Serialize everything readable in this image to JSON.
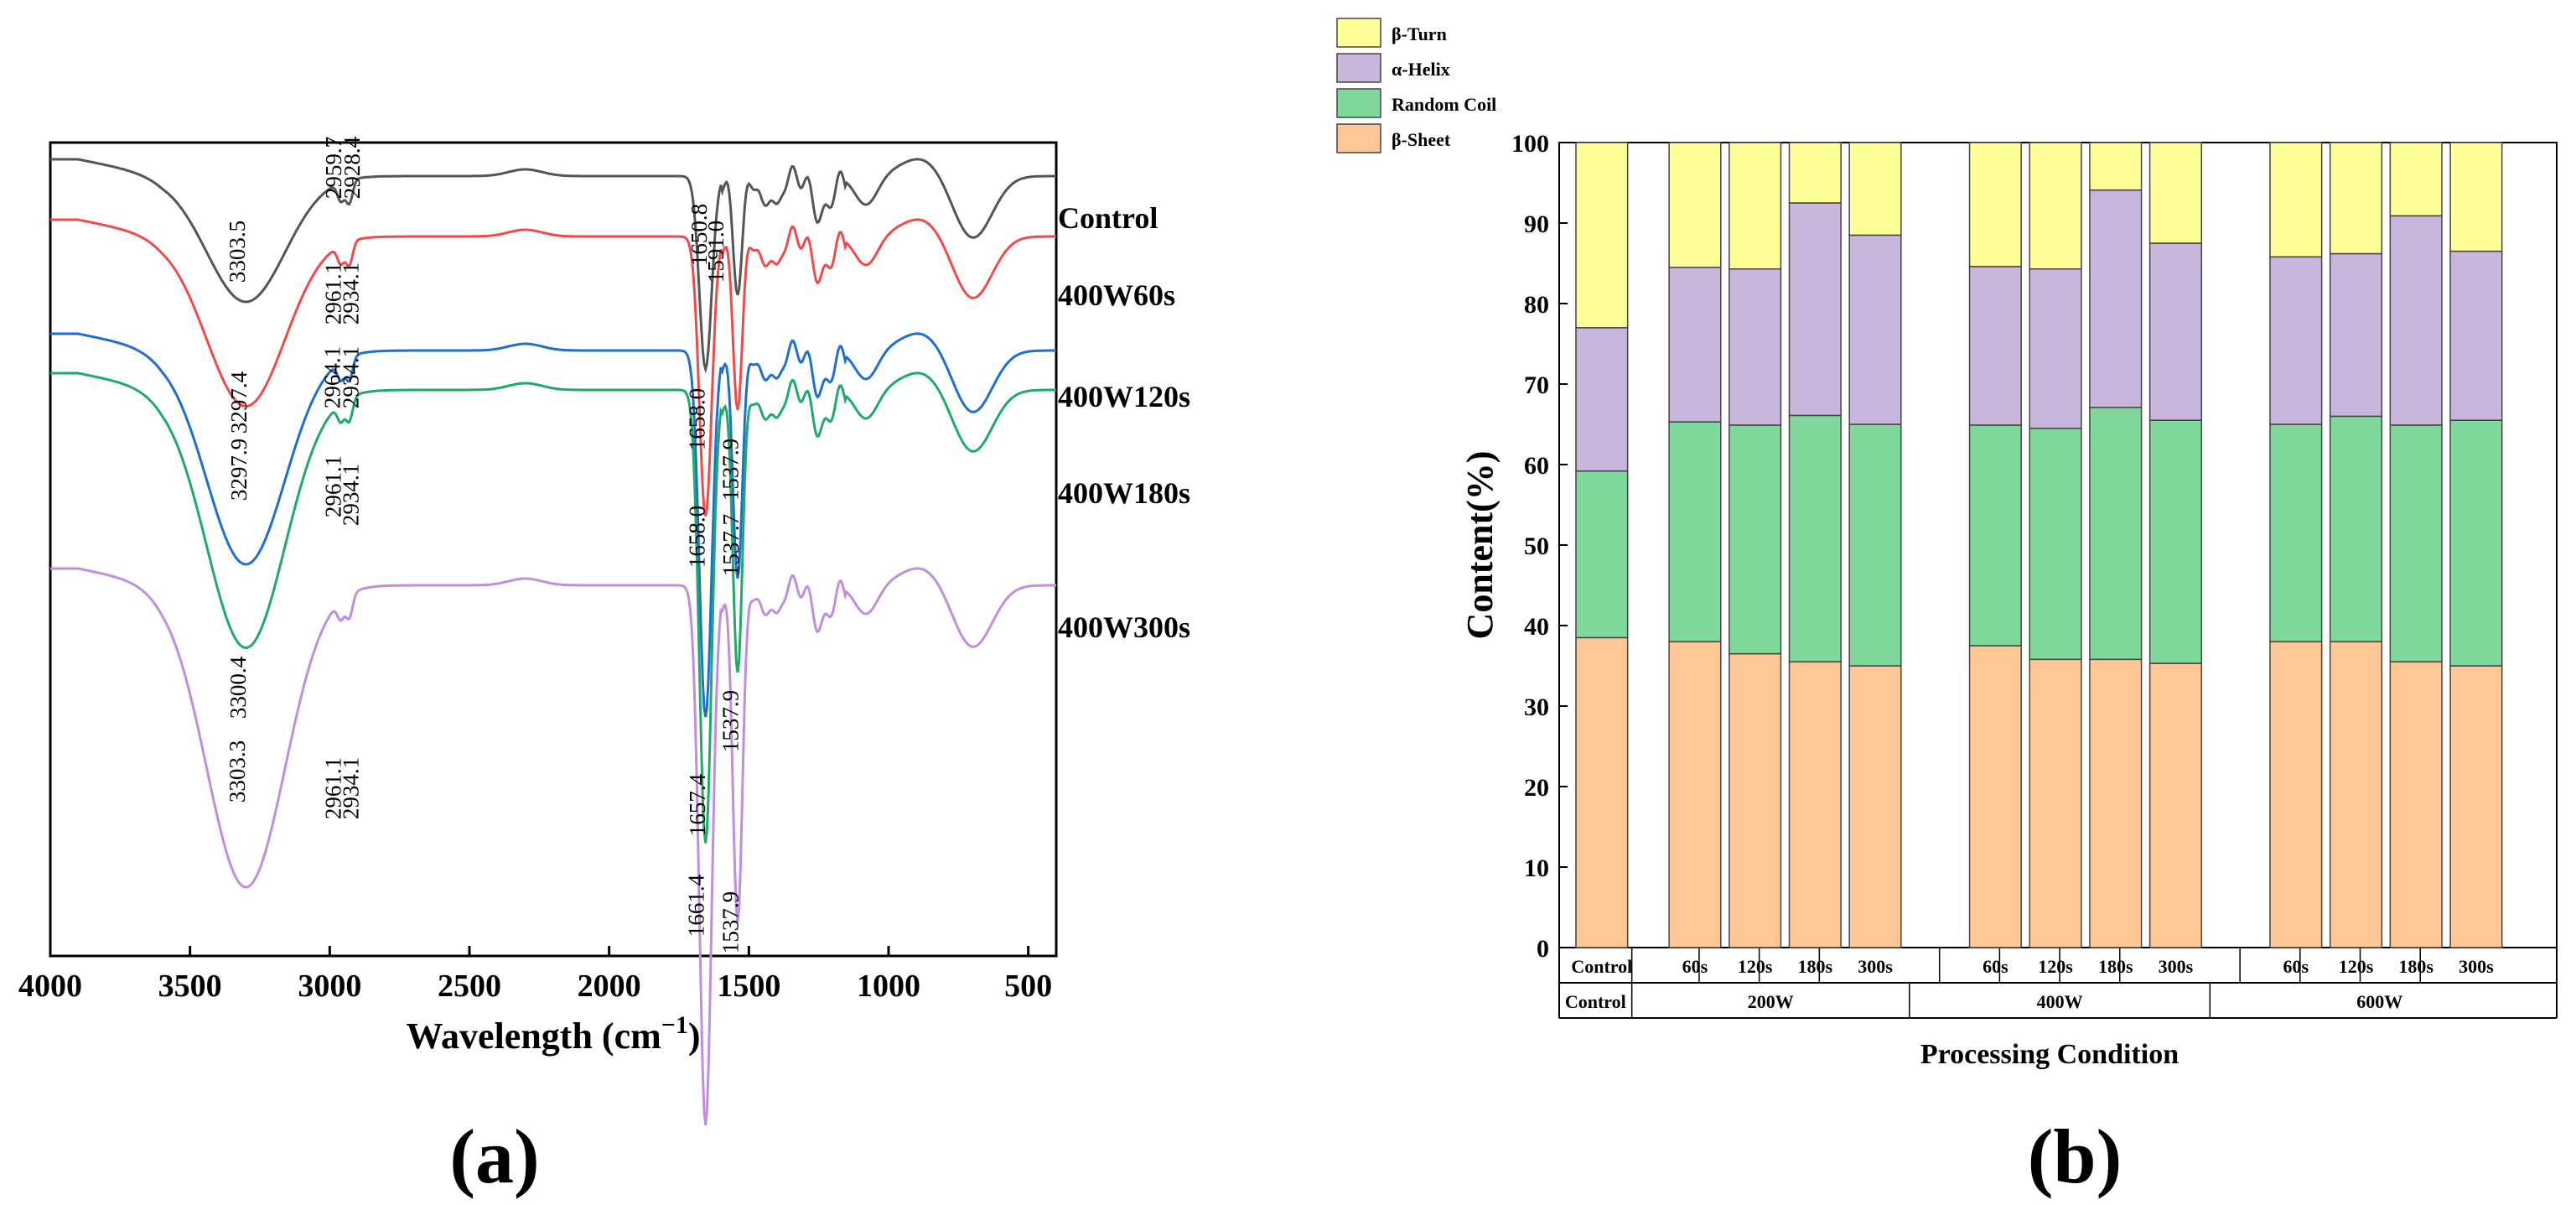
{
  "panel_labels": {
    "a": "(a)",
    "b": "(b)"
  },
  "chart_data": [
    {
      "type": "line",
      "xlabel": "Wavelength (cm",
      "xlabel_sup": "−1",
      "xlabel_close": ")",
      "xlim": [
        4000,
        400
      ],
      "x_ticks": [
        "4000",
        "3500",
        "3000",
        "2500",
        "2000",
        "1500",
        "1000",
        "500"
      ],
      "x_tick_values": [
        4000,
        3500,
        3000,
        2500,
        2000,
        1500,
        1000,
        500
      ],
      "series": [
        {
          "name": "Control",
          "color": "#555555",
          "offset": 0,
          "peaks": [
            "3303.5",
            "2959.7",
            "2928.4",
            "1650.8",
            "1591.0"
          ],
          "peak_positions": [
            3303.5,
            2959.7,
            2928.4,
            1650.8,
            1591.0
          ]
        },
        {
          "name": "400W60s",
          "color": "#f04a4a",
          "offset": 1,
          "peaks": [
            "3297.4",
            "2961.1",
            "2934.1",
            "1658.0",
            "1537.9"
          ],
          "peak_positions": [
            3297.4,
            2961.1,
            2934.1,
            1658.0,
            1537.9
          ]
        },
        {
          "name": "400W120s",
          "color": "#1f6fd1",
          "offset": 2,
          "peaks": [
            "3297.9",
            "2964.1",
            "2934.1",
            "1658.0",
            "1537.7"
          ],
          "peak_positions": [
            3297.9,
            2964.1,
            2934.1,
            1658.0,
            1537.7
          ]
        },
        {
          "name": "400W180s",
          "color": "#1faa6a",
          "offset": 3,
          "peaks": [
            "3300.4",
            "2961.1",
            "2934.1",
            "1657.4",
            "1537.9"
          ],
          "peak_positions": [
            3300.4,
            2961.1,
            2934.1,
            1657.4,
            1537.9
          ]
        },
        {
          "name": "400W300s",
          "color": "#c08ee0",
          "offset": 4,
          "peaks": [
            "3303.3",
            "2961.1",
            "2934.1",
            "1661.4",
            "1537.9"
          ],
          "peak_positions": [
            3303.3,
            2961.1,
            2934.1,
            1661.4,
            1537.9
          ]
        }
      ]
    },
    {
      "type": "bar",
      "stacked": true,
      "ylabel": "Content(%)",
      "xlabel": "Processing Condition",
      "ylim": [
        0,
        100
      ],
      "y_ticks": [
        "0",
        "10",
        "20",
        "30",
        "40",
        "50",
        "60",
        "70",
        "80",
        "90",
        "100"
      ],
      "legend_position": "top-left outside",
      "categories": [
        "Control",
        "60s",
        "120s",
        "180s",
        "300s",
        "60s",
        "120s",
        "180s",
        "300s",
        "60s",
        "120s",
        "180s",
        "300s"
      ],
      "groups": [
        {
          "label": "Control",
          "span": 1
        },
        {
          "label": "200W",
          "span": 4
        },
        {
          "label": "400W",
          "span": 4
        },
        {
          "label": "600W",
          "span": 4
        }
      ],
      "series": [
        {
          "name": "β-Sheet",
          "color": "#ffc796",
          "values": [
            38.5,
            38.0,
            36.5,
            35.5,
            35.0,
            37.5,
            35.8,
            35.8,
            35.3,
            38.0,
            38.0,
            35.5,
            35.0
          ]
        },
        {
          "name": "Random Coil",
          "color": "#80d89c",
          "values": [
            20.7,
            27.3,
            28.4,
            30.6,
            30.0,
            27.4,
            28.7,
            31.3,
            30.2,
            27.0,
            28.0,
            29.4,
            30.5
          ]
        },
        {
          "name": "α-Helix",
          "color": "#c9b6dd",
          "values": [
            17.8,
            19.2,
            19.4,
            26.4,
            23.5,
            19.7,
            19.8,
            27.0,
            22.0,
            20.8,
            20.2,
            26.0,
            21.0
          ]
        },
        {
          "name": "β-Turn",
          "color": "#ffff99",
          "values": [
            23.0,
            15.5,
            15.7,
            7.5,
            11.5,
            15.4,
            15.7,
            5.9,
            12.5,
            14.2,
            13.8,
            9.1,
            13.5
          ]
        }
      ]
    }
  ]
}
